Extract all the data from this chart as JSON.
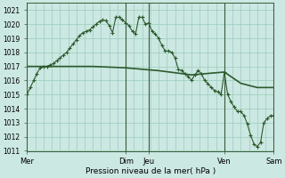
{
  "title": "",
  "xlabel": "Pression niveau de la mer( hPa )",
  "ylabel": "",
  "bg_color": "#cce8e2",
  "grid_color": "#99ccbb",
  "line_color": "#2d5a2d",
  "ylim": [
    1011,
    1021.5
  ],
  "ytick_vals": [
    1011,
    1012,
    1013,
    1014,
    1015,
    1016,
    1017,
    1018,
    1019,
    1020,
    1021
  ],
  "xtick_labels": [
    "Mer",
    "Dim",
    "Jeu",
    "Ven",
    "Sam"
  ],
  "xtick_positions": [
    0,
    30,
    37,
    60,
    75
  ],
  "vline_positions": [
    0,
    30,
    37,
    60,
    75
  ],
  "series1_x": [
    0,
    1,
    2,
    3,
    4,
    5,
    6,
    7,
    8,
    9,
    10,
    11,
    12,
    13,
    14,
    15,
    16,
    17,
    18,
    19,
    20,
    21,
    22,
    23,
    24,
    25,
    26,
    27,
    28,
    29,
    30,
    31,
    32,
    33,
    34,
    35,
    36,
    37,
    38,
    39,
    40,
    41,
    42,
    43,
    44,
    45,
    46,
    47,
    48,
    49,
    50,
    51,
    52,
    53,
    54,
    55,
    56,
    57,
    58,
    59,
    60,
    61,
    62,
    63,
    64,
    65,
    66,
    67,
    68,
    69,
    70,
    71,
    72,
    73,
    74,
    75
  ],
  "series1_y": [
    1015.0,
    1015.5,
    1016.0,
    1016.5,
    1016.9,
    1017.0,
    1017.0,
    1017.1,
    1017.2,
    1017.4,
    1017.6,
    1017.8,
    1018.0,
    1018.3,
    1018.6,
    1018.9,
    1019.2,
    1019.4,
    1019.5,
    1019.6,
    1019.8,
    1020.0,
    1020.2,
    1020.3,
    1020.25,
    1019.9,
    1019.4,
    1020.5,
    1020.5,
    1020.3,
    1020.1,
    1019.9,
    1019.5,
    1019.3,
    1020.5,
    1020.5,
    1020.0,
    1020.1,
    1019.5,
    1019.3,
    1019.0,
    1018.5,
    1018.1,
    1018.1,
    1018.0,
    1017.6,
    1016.8,
    1016.7,
    1016.5,
    1016.3,
    1016.0,
    1016.4,
    1016.7,
    1016.5,
    1016.0,
    1015.8,
    1015.5,
    1015.3,
    1015.2,
    1015.0,
    1016.6,
    1015.0,
    1014.5,
    1014.1,
    1013.8,
    1013.8,
    1013.5,
    1012.9,
    1012.1,
    1011.5,
    1011.3,
    1011.6,
    1013.0,
    1013.3,
    1013.5,
    1013.5
  ],
  "series2_x": [
    0,
    10,
    20,
    30,
    40,
    50,
    60,
    65,
    70,
    75
  ],
  "series2_y": [
    1017.0,
    1017.0,
    1017.0,
    1016.9,
    1016.7,
    1016.4,
    1016.6,
    1015.8,
    1015.5,
    1015.5
  ],
  "total_x": 75
}
